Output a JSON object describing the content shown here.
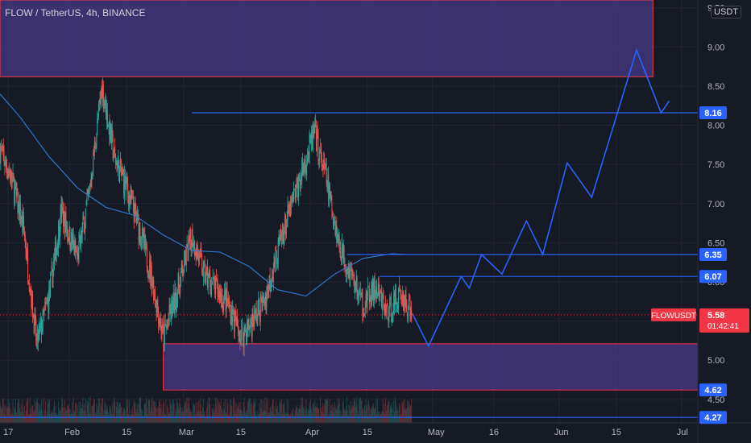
{
  "header": {
    "title": "FLOW / TetherUS, 4h, BINANCE"
  },
  "axis": {
    "currency_badge": "USDT"
  },
  "colors": {
    "background": "#161a25",
    "grid": "#232632",
    "axis_text": "#b2b5be",
    "candle_up": "#26a69a",
    "candle_down": "#ef5350",
    "ma_line": "#2e7fd6",
    "drawing_line": "#2962ff",
    "zone_fill": "#4a3a8c",
    "zone_border": "#f23645",
    "price_label_bg": "#2962ff",
    "current_label_bg": "#f23645"
  },
  "chart_data": {
    "type": "candlestick",
    "symbol": "FLOWUSDT",
    "interval": "4h",
    "exchange": "BINANCE",
    "y_ticks": [
      "4.50",
      "5.00",
      "5.50",
      "6.00",
      "6.50",
      "7.00",
      "7.50",
      "8.00",
      "8.50",
      "9.00",
      "9.50"
    ],
    "y_tick_values": [
      4.5,
      5.0,
      5.5,
      6.0,
      6.5,
      7.0,
      7.5,
      8.0,
      8.5,
      9.0,
      9.5
    ],
    "ylim": [
      4.2,
      9.6
    ],
    "x_ticks": [
      {
        "label": "17",
        "date": "2022-01-17"
      },
      {
        "label": "Feb",
        "date": "2022-02-01"
      },
      {
        "label": "15",
        "date": "2022-02-15"
      },
      {
        "label": "Mar",
        "date": "2022-03-01"
      },
      {
        "label": "15",
        "date": "2022-03-15"
      },
      {
        "label": "Apr",
        "date": "2022-04-01"
      },
      {
        "label": "15",
        "date": "2022-04-15"
      },
      {
        "label": "May",
        "date": "2022-05-01"
      },
      {
        "label": "16",
        "date": "2022-05-16"
      },
      {
        "label": "Jun",
        "date": "2022-06-01"
      },
      {
        "label": "15",
        "date": "2022-06-15"
      },
      {
        "label": "Jul",
        "date": "2022-07-01"
      }
    ],
    "xlim": [
      "2022-01-15",
      "2022-07-05"
    ],
    "price_path": [
      [
        "2022-01-15",
        7.7
      ],
      [
        "2022-01-18",
        7.3
      ],
      [
        "2022-01-21",
        6.6
      ],
      [
        "2022-01-24",
        5.2
      ],
      [
        "2022-01-27",
        5.8
      ],
      [
        "2022-01-30",
        6.9
      ],
      [
        "2022-02-03",
        6.3
      ],
      [
        "2022-02-06",
        7.2
      ],
      [
        "2022-02-09",
        8.5
      ],
      [
        "2022-02-12",
        7.6
      ],
      [
        "2022-02-15",
        7.2
      ],
      [
        "2022-02-18",
        6.7
      ],
      [
        "2022-02-21",
        6.1
      ],
      [
        "2022-02-24",
        5.3
      ],
      [
        "2022-02-27",
        5.8
      ],
      [
        "2022-03-03",
        6.6
      ],
      [
        "2022-03-06",
        6.1
      ],
      [
        "2022-03-09",
        5.9
      ],
      [
        "2022-03-12",
        5.7
      ],
      [
        "2022-03-15",
        5.3
      ],
      [
        "2022-03-18",
        5.5
      ],
      [
        "2022-03-21",
        5.8
      ],
      [
        "2022-03-24",
        6.4
      ],
      [
        "2022-03-27",
        6.9
      ],
      [
        "2022-03-30",
        7.4
      ],
      [
        "2022-04-02",
        7.9
      ],
      [
        "2022-04-05",
        7.3
      ],
      [
        "2022-04-08",
        6.5
      ],
      [
        "2022-04-11",
        6.1
      ],
      [
        "2022-04-14",
        5.7
      ],
      [
        "2022-04-17",
        5.9
      ],
      [
        "2022-04-20",
        5.6
      ],
      [
        "2022-04-23",
        5.85
      ],
      [
        "2022-04-26",
        5.58
      ]
    ],
    "moving_average": [
      [
        "2022-01-15",
        8.4
      ],
      [
        "2022-01-20",
        8.1
      ],
      [
        "2022-01-27",
        7.6
      ],
      [
        "2022-02-03",
        7.2
      ],
      [
        "2022-02-10",
        6.95
      ],
      [
        "2022-02-17",
        6.85
      ],
      [
        "2022-02-24",
        6.6
      ],
      [
        "2022-03-03",
        6.4
      ],
      [
        "2022-03-10",
        6.38
      ],
      [
        "2022-03-17",
        6.2
      ],
      [
        "2022-03-24",
        5.9
      ],
      [
        "2022-03-31",
        5.82
      ],
      [
        "2022-04-07",
        6.1
      ],
      [
        "2022-04-14",
        6.3
      ],
      [
        "2022-04-21",
        6.36
      ],
      [
        "2022-04-25",
        6.35
      ]
    ],
    "horizontal_lines": [
      {
        "price": 8.16,
        "label": "8.16",
        "from": "2022-03-03"
      },
      {
        "price": 6.35,
        "label": "6.35",
        "from": "2022-04-10"
      },
      {
        "price": 6.07,
        "label": "6.07",
        "from": "2022-04-18"
      },
      {
        "price": 4.27,
        "label": "4.27",
        "from": "2022-01-15"
      }
    ],
    "zones": [
      {
        "top": 9.6,
        "bottom": 8.62,
        "from": "2022-01-15",
        "to": "2022-06-24"
      },
      {
        "top": 5.21,
        "bottom": 4.62,
        "from": "2022-02-24",
        "to": "2022-07-05",
        "label": "4.62"
      }
    ],
    "projection": [
      [
        "2022-04-26",
        5.6
      ],
      [
        "2022-04-30",
        5.18
      ],
      [
        "2022-05-08",
        6.07
      ],
      [
        "2022-05-10",
        5.92
      ],
      [
        "2022-05-13",
        6.35
      ],
      [
        "2022-05-18",
        6.1
      ],
      [
        "2022-05-24",
        6.78
      ],
      [
        "2022-05-28",
        6.35
      ],
      [
        "2022-06-03",
        7.52
      ],
      [
        "2022-06-09",
        7.08
      ],
      [
        "2022-06-20",
        8.96
      ],
      [
        "2022-06-26",
        8.16
      ],
      [
        "2022-06-28",
        8.31
      ]
    ],
    "current_price": {
      "symbol": "FLOWUSDT",
      "price": 5.58,
      "label": "5.58",
      "countdown": "01:42:41"
    }
  }
}
